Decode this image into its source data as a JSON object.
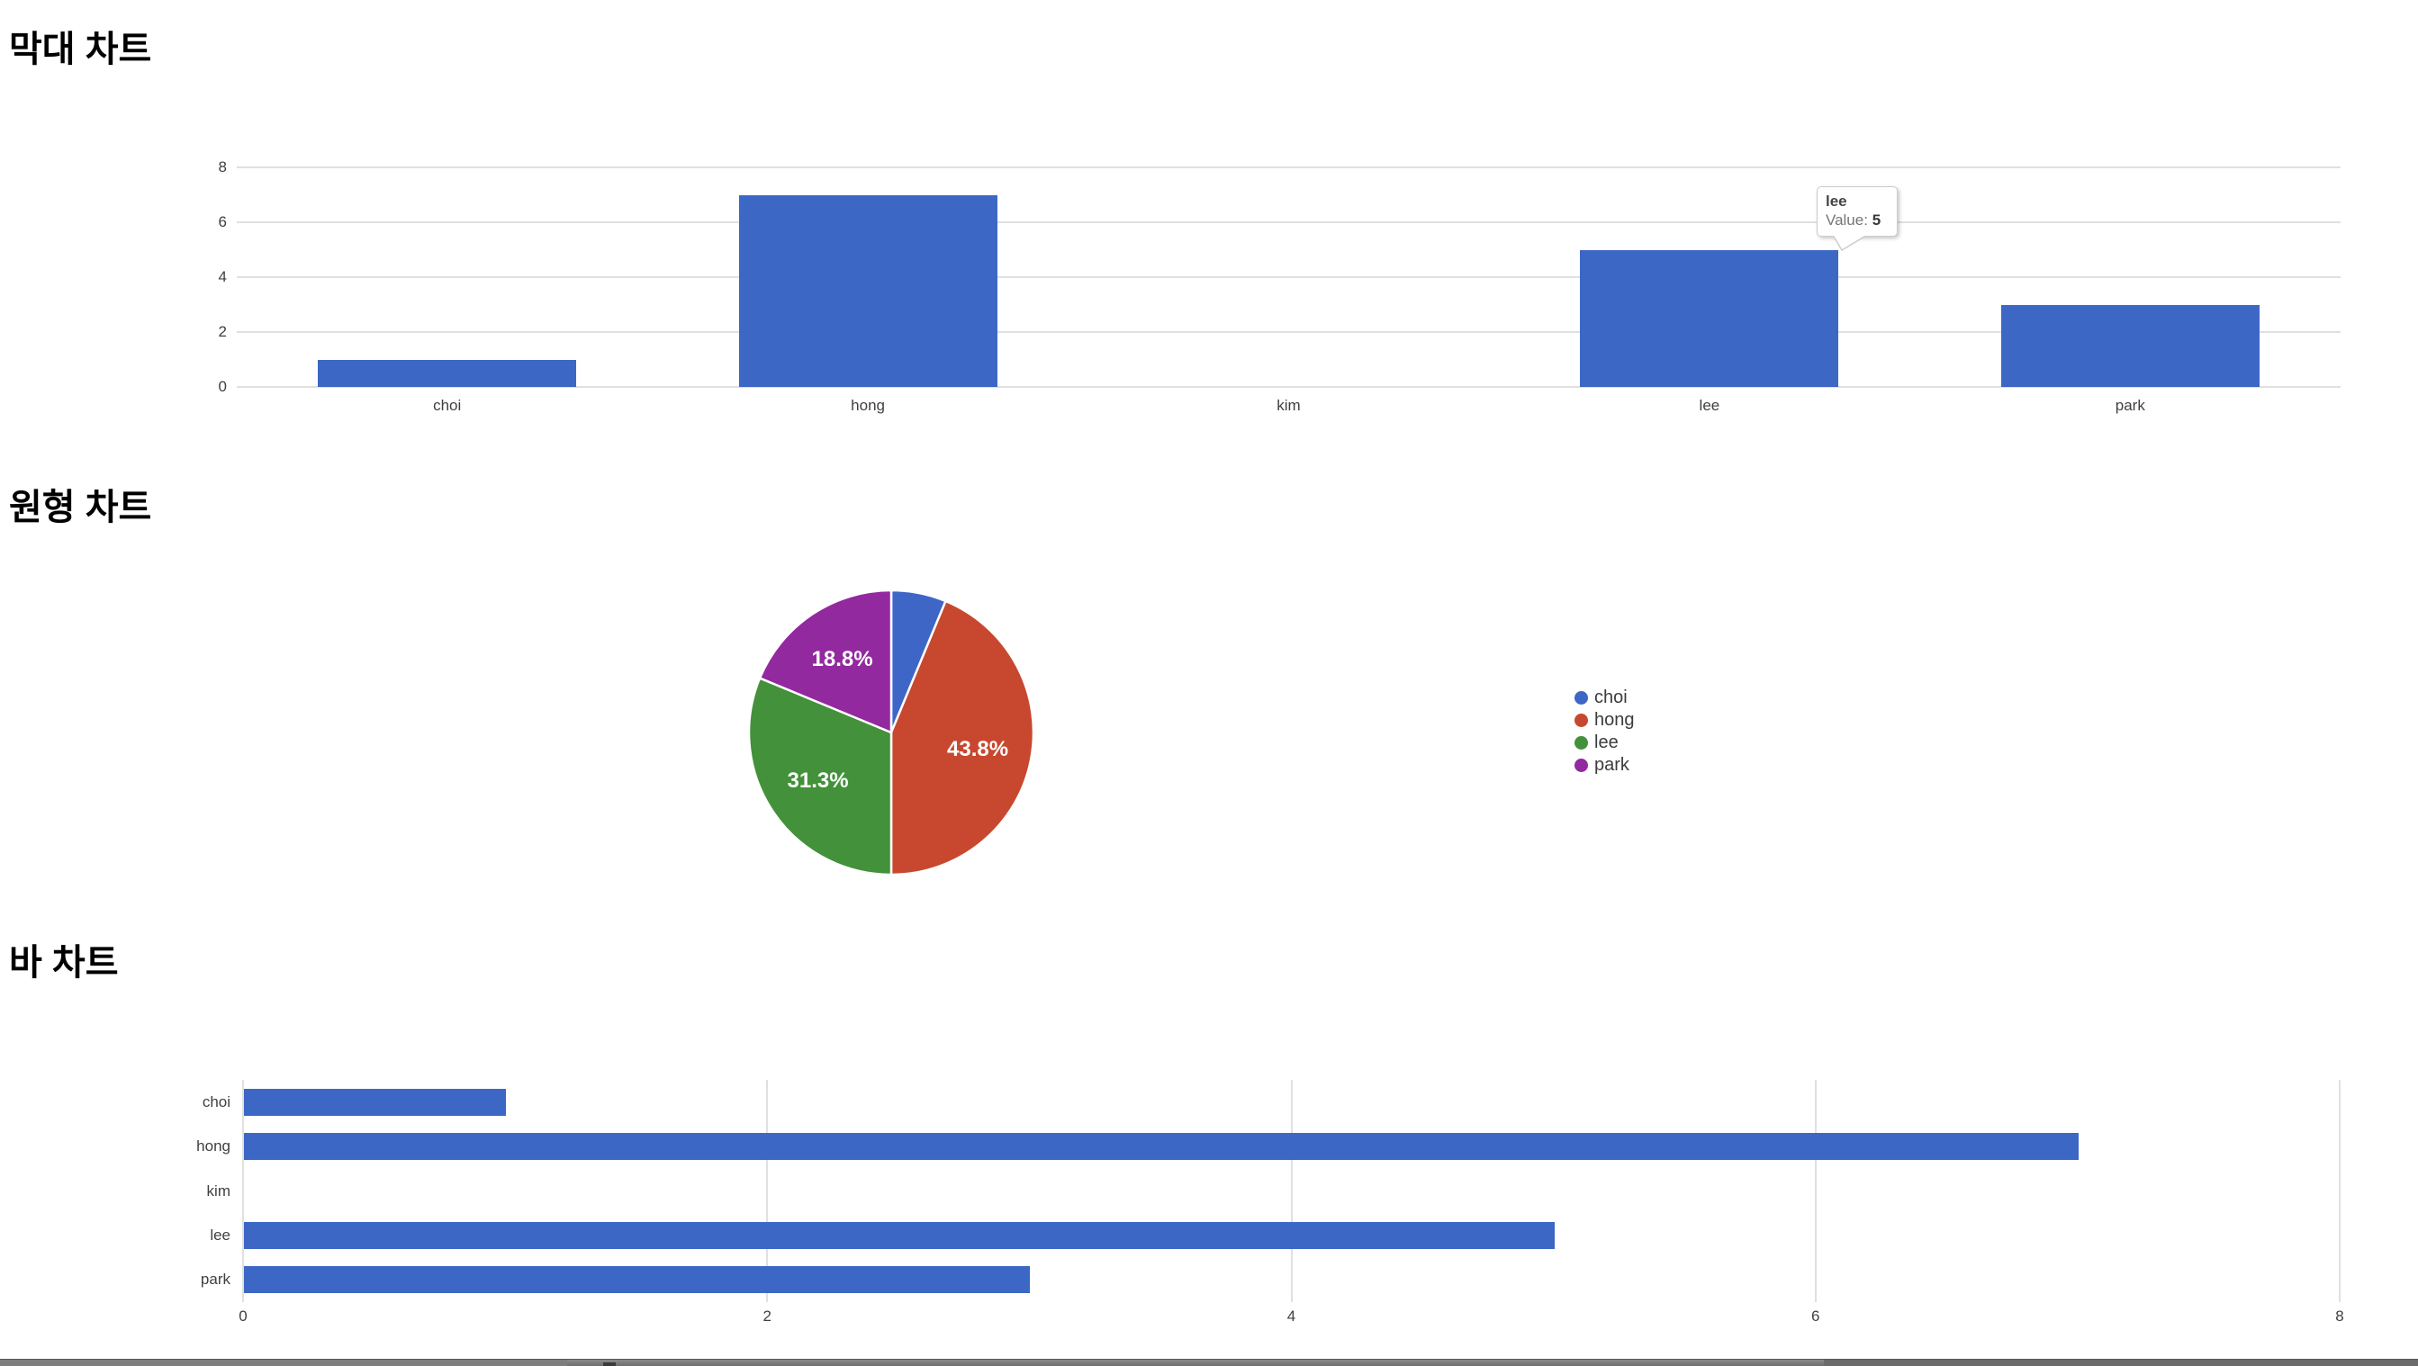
{
  "page": {
    "background": "#ffffff"
  },
  "sections": {
    "column_chart": {
      "title": "막대 차트"
    },
    "pie_chart": {
      "title": "원형 차트"
    },
    "bar_chart": {
      "title": "바 차트"
    }
  },
  "tooltip": {
    "category": "lee",
    "value_label": "Value:",
    "value": "5"
  },
  "colors": {
    "bar_blue": "#3c67c5",
    "pie_blue": "#3d66c6",
    "pie_red": "#c7482e",
    "pie_green": "#43913a",
    "pie_purple": "#93299e",
    "gridline": "#e0e0e0",
    "axis_text": "#404040"
  },
  "legend": {
    "items": [
      {
        "label": "choi",
        "color": "#3d66c6"
      },
      {
        "label": "hong",
        "color": "#c7482e"
      },
      {
        "label": "lee",
        "color": "#43913a"
      },
      {
        "label": "park",
        "color": "#93299e"
      }
    ]
  },
  "chart_data": [
    {
      "type": "bar",
      "orientation": "vertical",
      "title": "막대 차트",
      "categories": [
        "choi",
        "hong",
        "kim",
        "lee",
        "park"
      ],
      "values": [
        1,
        7,
        0,
        5,
        3
      ],
      "xlabel": "",
      "ylabel": "",
      "ylim": [
        0,
        8
      ],
      "yticks": [
        0,
        2,
        4,
        6,
        8
      ],
      "grid": true,
      "bar_color": "#3c67c5",
      "tooltip_shown": {
        "category": "lee",
        "text": "Value: 5"
      }
    },
    {
      "type": "pie",
      "title": "원형 차트",
      "slices": [
        {
          "label": "choi",
          "value": 1,
          "percent_label": "",
          "color": "#3d66c6"
        },
        {
          "label": "hong",
          "value": 7,
          "percent_label": "43.8%",
          "color": "#c7482e"
        },
        {
          "label": "lee",
          "value": 5,
          "percent_label": "31.3%",
          "color": "#43913a"
        },
        {
          "label": "park",
          "value": 3,
          "percent_label": "18.8%",
          "color": "#93299e"
        }
      ],
      "start_angle_deg": 0,
      "direction": "clockwise",
      "legend_position": "right"
    },
    {
      "type": "bar",
      "orientation": "horizontal",
      "title": "바 차트",
      "categories": [
        "choi",
        "hong",
        "kim",
        "lee",
        "park"
      ],
      "values": [
        1,
        7,
        0,
        5,
        3
      ],
      "xlabel": "",
      "ylabel": "",
      "xlim": [
        0,
        8
      ],
      "xticks": [
        0,
        2,
        4,
        6,
        8
      ],
      "grid": true,
      "bar_color": "#3c67c5"
    }
  ]
}
